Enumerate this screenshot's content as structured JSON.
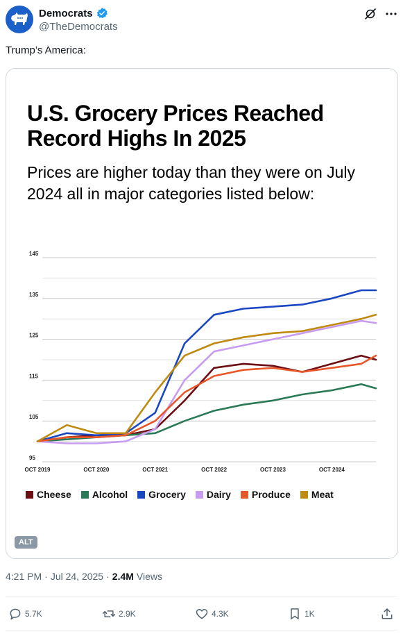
{
  "account": {
    "name": "Democrats",
    "handle": "@TheDemocrats"
  },
  "tweet": {
    "text": "Trump’s America:"
  },
  "graphic": {
    "title": "U.S. Grocery Prices Reached Record Highs In 2025",
    "subtitle": "Prices are higher today than they were on July 2024 all in major categories listed below:",
    "alt_label": "ALT"
  },
  "meta": {
    "time": "4:21 PM",
    "date": "Jul 24, 2025",
    "views_count": "2.4M",
    "views_label": "Views"
  },
  "actions": {
    "replies": "5.7K",
    "reposts": "2.9K",
    "likes": "4.3K",
    "bookmarks": "1K"
  },
  "colors": {
    "brand_blue": "#1b5fc9",
    "verified": "#1d9bf0"
  },
  "chart_data": {
    "type": "line",
    "title": "U.S. Grocery Prices Reached Record Highs In 2025",
    "subtitle": "Prices are higher today than they were on July 2024 all in major categories listed below:",
    "x": [
      "2019-10",
      "2020-04",
      "2020-10",
      "2021-04",
      "2021-10",
      "2022-04",
      "2022-10",
      "2023-04",
      "2023-10",
      "2024-04",
      "2024-10",
      "2025-04",
      "2025-07"
    ],
    "x_tick_labels": [
      "OCT 2019",
      "OCT 2020",
      "OCT 2021",
      "OCT 2022",
      "OCT 2023",
      "OCT 2024"
    ],
    "y_tick_labels": [
      "95",
      "105",
      "115",
      "125",
      "135",
      "145"
    ],
    "ylim": [
      95,
      145
    ],
    "grid": true,
    "legend_position": "bottom",
    "series": [
      {
        "name": "Cheese",
        "color": "#6b0d12",
        "values": [
          100,
          101,
          101.5,
          101.5,
          103,
          110,
          118,
          119,
          118.5,
          117,
          119,
          121,
          120
        ]
      },
      {
        "name": "Alcohol",
        "color": "#2b7a57",
        "values": [
          100,
          100.5,
          101,
          101.5,
          102,
          105,
          107.5,
          109,
          110,
          111.5,
          112.5,
          114,
          113
        ]
      },
      {
        "name": "Grocery",
        "color": "#1947c2",
        "values": [
          100,
          102,
          101.5,
          102,
          107,
          124,
          131,
          132.5,
          133,
          133.5,
          135,
          137,
          137
        ]
      },
      {
        "name": "Dairy",
        "color": "#c79bf0",
        "values": [
          100,
          99.5,
          99.5,
          100,
          103,
          115,
          122,
          123.5,
          125,
          126.5,
          128,
          129.5,
          129
        ]
      },
      {
        "name": "Produce",
        "color": "#e8572a",
        "values": [
          100,
          101,
          101,
          101.5,
          105,
          112,
          116,
          117.5,
          118,
          117,
          118,
          119,
          121
        ]
      },
      {
        "name": "Meat",
        "color": "#bf8a10",
        "values": [
          100,
          104,
          102,
          102,
          112,
          121,
          124,
          125.5,
          126.5,
          127,
          128.5,
          130,
          131
        ]
      }
    ]
  }
}
